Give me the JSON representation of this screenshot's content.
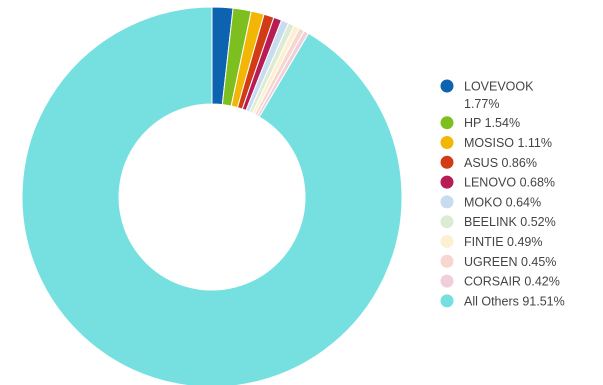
{
  "chart_data": {
    "type": "pie",
    "variant": "donut",
    "title": "",
    "legend_position": "right",
    "slices": [
      {
        "label": "LOVEVOOK",
        "value": 1.77,
        "display": "1.77%",
        "color": "#0e63b0"
      },
      {
        "label": "HP",
        "value": 1.54,
        "display": "1.54%",
        "color": "#7cbf1f"
      },
      {
        "label": "MOSISO",
        "value": 1.11,
        "display": "1.11%",
        "color": "#f2b705"
      },
      {
        "label": "ASUS",
        "value": 0.86,
        "display": "0.86%",
        "color": "#d13b16"
      },
      {
        "label": "LENOVO",
        "value": 0.68,
        "display": "0.68%",
        "color": "#b81c55"
      },
      {
        "label": "MOKO",
        "value": 0.64,
        "display": "0.64%",
        "color": "#c8dcef"
      },
      {
        "label": "BEELINK",
        "value": 0.52,
        "display": "0.52%",
        "color": "#dcebd4"
      },
      {
        "label": "FINTIE",
        "value": 0.49,
        "display": "0.49%",
        "color": "#fdf0d1"
      },
      {
        "label": "UGREEN",
        "value": 0.45,
        "display": "0.45%",
        "color": "#f6d6cf"
      },
      {
        "label": "CORSAIR",
        "value": 0.42,
        "display": "0.42%",
        "color": "#f0cfd8"
      },
      {
        "label": "All Others",
        "value": 91.51,
        "display": "91.51%",
        "color": "#76e0e0"
      }
    ]
  }
}
